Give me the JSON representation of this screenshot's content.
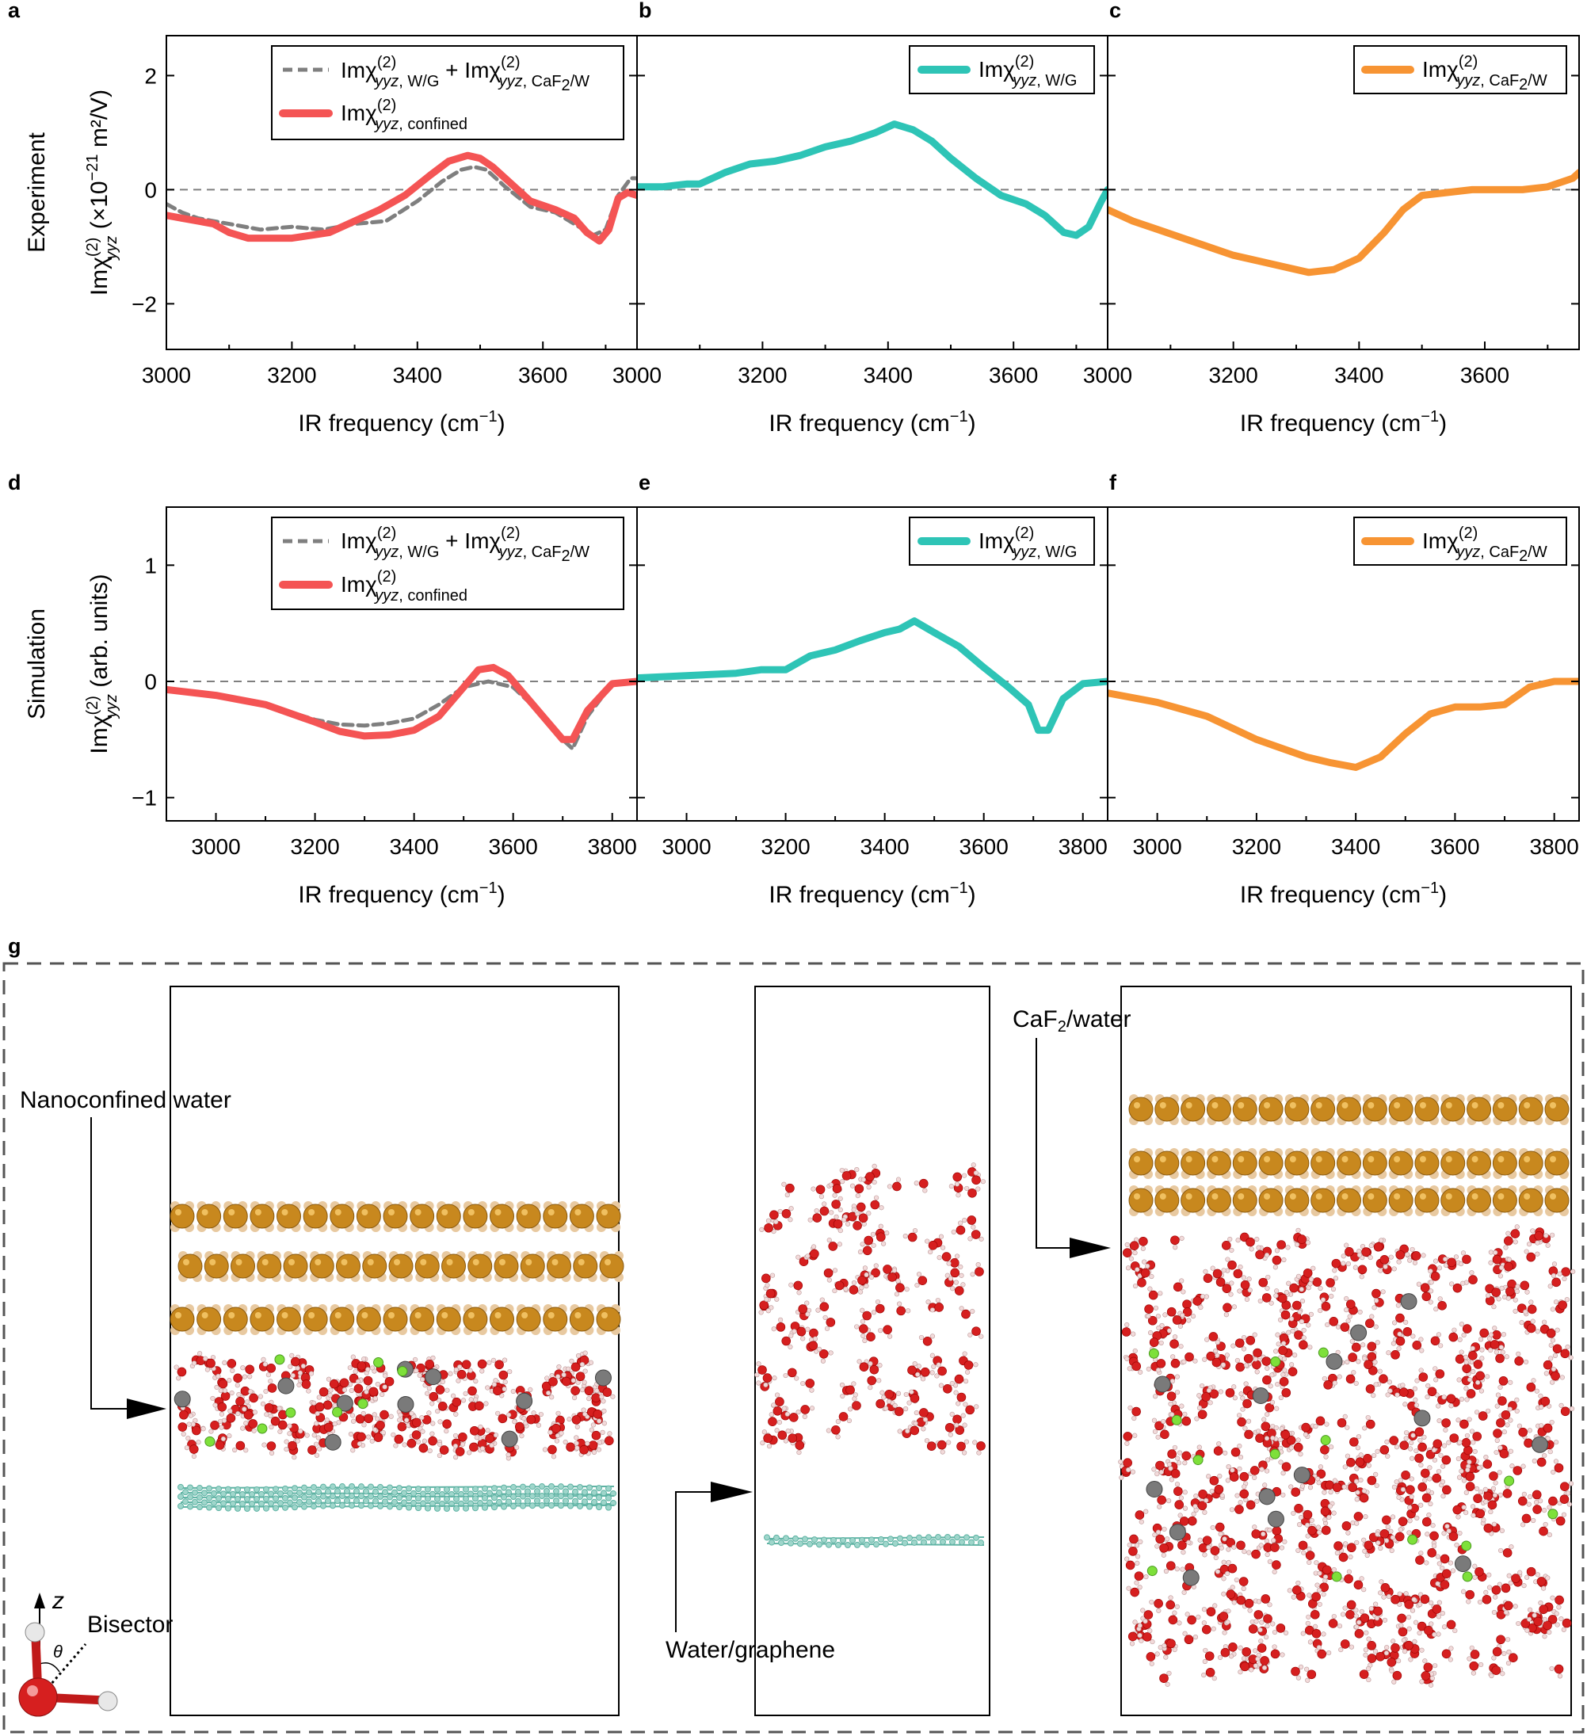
{
  "panel_letters": {
    "a": "a",
    "b": "b",
    "c": "c",
    "d": "d",
    "e": "e",
    "f": "f",
    "g": "g"
  },
  "row_labels": {
    "experiment": "Experiment",
    "simulation": "Simulation"
  },
  "ylabels": {
    "experiment_main": "Imχ",
    "experiment_sup": "(2)",
    "experiment_sub": "yyz",
    "experiment_units_pre": " (×10",
    "experiment_units_exp": "−21",
    "experiment_units_post": " m²/V)",
    "simulation_main": "Imχ",
    "simulation_sup": "(2)",
    "simulation_sub": "yyz",
    "simulation_units": " (arb. units)"
  },
  "xlabel": {
    "main": "IR frequency (cm",
    "exp": "−1",
    "close": ")"
  },
  "legends": {
    "im": "Imχ",
    "sup": "(2)",
    "yyz": "yyz",
    "sub_wg": ", W/G",
    "sub_caf2": ", CaF",
    "caf2_2": "2",
    "caf2_w": "/W",
    "sub_confined": ", confined",
    "plus": " + "
  },
  "scene_labels": {
    "nanoconfined": "Nanoconfined water",
    "water_graphene": "Water/graphene",
    "caf2_pre": "CaF",
    "caf2_2": "2",
    "caf2_post": "/water",
    "bisector": "Bisector",
    "z": "z",
    "theta": "θ"
  },
  "colors": {
    "confined": "#f45454",
    "sum": "#7f7f7f",
    "wg": "#2ec4b6",
    "caf2": "#f79433",
    "ca": "#c8881e",
    "f": "#e8c9a0",
    "oxygen": "#d61f1f",
    "hydrogen": "#f2dada",
    "graphene": "#5fb3a4",
    "ion_green": "#7ee03a",
    "ion_grey": "#7a7a7a"
  },
  "chart_data": [
    {
      "panel": "a",
      "type": "line",
      "row": "Experiment",
      "xlabel": "IR frequency (cm−1)",
      "ylabel": "Imχ(2)yyz (×10−21 m²/V)",
      "xlim": [
        3000,
        3750
      ],
      "ylim": [
        -2.8,
        2.7
      ],
      "xticks": [
        3000,
        3200,
        3400,
        3600
      ],
      "yticks": [
        -2,
        0,
        2
      ],
      "zero_line": true,
      "series": [
        {
          "name": "Imχ(2)yyz, W/G + Imχ(2)yyz, CaF2/W",
          "style": "dashed",
          "color": "#7f7f7f",
          "x": [
            3000,
            3025,
            3050,
            3100,
            3150,
            3200,
            3250,
            3300,
            3350,
            3400,
            3440,
            3470,
            3490,
            3510,
            3540,
            3580,
            3620,
            3650,
            3680,
            3700,
            3720,
            3740,
            3750
          ],
          "y": [
            -0.25,
            -0.4,
            -0.5,
            -0.6,
            -0.7,
            -0.65,
            -0.7,
            -0.6,
            -0.55,
            -0.2,
            0.15,
            0.35,
            0.4,
            0.35,
            0.05,
            -0.3,
            -0.4,
            -0.6,
            -0.8,
            -0.7,
            -0.1,
            0.2,
            0.2
          ]
        },
        {
          "name": "Imχ(2)yyz, confined",
          "style": "solid",
          "color": "#f45454",
          "x": [
            3000,
            3025,
            3050,
            3075,
            3100,
            3130,
            3160,
            3200,
            3230,
            3260,
            3300,
            3340,
            3380,
            3420,
            3450,
            3480,
            3500,
            3520,
            3550,
            3580,
            3620,
            3650,
            3670,
            3690,
            3705,
            3720,
            3735,
            3750
          ],
          "y": [
            -0.45,
            -0.5,
            -0.55,
            -0.6,
            -0.75,
            -0.85,
            -0.85,
            -0.85,
            -0.8,
            -0.75,
            -0.55,
            -0.35,
            -0.1,
            0.25,
            0.5,
            0.6,
            0.55,
            0.4,
            0.1,
            -0.2,
            -0.35,
            -0.5,
            -0.75,
            -0.9,
            -0.7,
            -0.15,
            -0.05,
            -0.1
          ]
        }
      ],
      "legend": "top-right"
    },
    {
      "panel": "b",
      "type": "line",
      "row": "Experiment",
      "xlabel": "IR frequency (cm−1)",
      "xlim": [
        3000,
        3750
      ],
      "ylim": [
        -2.8,
        2.7
      ],
      "xticks": [
        3000,
        3200,
        3400,
        3600
      ],
      "zero_line": true,
      "series": [
        {
          "name": "Imχ(2)yyz, W/G",
          "style": "solid",
          "color": "#2ec4b6",
          "x": [
            3000,
            3040,
            3080,
            3100,
            3140,
            3180,
            3220,
            3260,
            3300,
            3340,
            3380,
            3410,
            3440,
            3470,
            3500,
            3540,
            3580,
            3620,
            3650,
            3680,
            3700,
            3720,
            3740,
            3750
          ],
          "y": [
            0.05,
            0.05,
            0.1,
            0.1,
            0.3,
            0.45,
            0.5,
            0.6,
            0.75,
            0.85,
            1.0,
            1.15,
            1.05,
            0.85,
            0.55,
            0.2,
            -0.1,
            -0.25,
            -0.45,
            -0.75,
            -0.8,
            -0.65,
            -0.2,
            0.0
          ]
        }
      ],
      "legend": "top-right"
    },
    {
      "panel": "c",
      "type": "line",
      "row": "Experiment",
      "xlabel": "IR frequency (cm−1)",
      "xlim": [
        3000,
        3750
      ],
      "ylim": [
        -2.8,
        2.7
      ],
      "xticks": [
        3000,
        3200,
        3400,
        3600
      ],
      "zero_line": true,
      "series": [
        {
          "name": "Imχ(2)yyz, CaF2/W",
          "style": "solid",
          "color": "#f79433",
          "x": [
            3000,
            3040,
            3080,
            3120,
            3160,
            3200,
            3240,
            3280,
            3320,
            3360,
            3400,
            3440,
            3470,
            3500,
            3540,
            3580,
            3620,
            3660,
            3700,
            3740,
            3750
          ],
          "y": [
            -0.35,
            -0.55,
            -0.7,
            -0.85,
            -1.0,
            -1.15,
            -1.25,
            -1.35,
            -1.45,
            -1.4,
            -1.2,
            -0.75,
            -0.35,
            -0.1,
            -0.05,
            0.0,
            0.0,
            0.0,
            0.05,
            0.2,
            0.3
          ]
        }
      ],
      "legend": "top-right"
    },
    {
      "panel": "d",
      "type": "line",
      "row": "Simulation",
      "xlabel": "IR frequency (cm−1)",
      "ylabel": "Imχ(2)yyz (arb. units)",
      "xlim": [
        2900,
        3850
      ],
      "ylim": [
        -1.2,
        1.5
      ],
      "xticks": [
        3000,
        3200,
        3400,
        3600,
        3800
      ],
      "yticks": [
        -1,
        0,
        1
      ],
      "zero_line": true,
      "series": [
        {
          "name": "Imχ(2)yyz, W/G + Imχ(2)yyz, CaF2/W",
          "style": "dashed",
          "color": "#7f7f7f",
          "x": [
            2900,
            3000,
            3100,
            3200,
            3250,
            3300,
            3350,
            3400,
            3450,
            3500,
            3550,
            3600,
            3650,
            3700,
            3720,
            3750,
            3800,
            3850
          ],
          "y": [
            -0.07,
            -0.12,
            -0.2,
            -0.33,
            -0.37,
            -0.38,
            -0.36,
            -0.32,
            -0.2,
            -0.05,
            0.0,
            -0.05,
            -0.25,
            -0.5,
            -0.58,
            -0.3,
            -0.02,
            0.0
          ]
        },
        {
          "name": "Imχ(2)yyz, confined",
          "style": "solid",
          "color": "#f45454",
          "x": [
            2900,
            3000,
            3100,
            3200,
            3250,
            3300,
            3350,
            3400,
            3450,
            3500,
            3530,
            3560,
            3590,
            3620,
            3660,
            3700,
            3720,
            3750,
            3800,
            3850
          ],
          "y": [
            -0.07,
            -0.12,
            -0.2,
            -0.35,
            -0.43,
            -0.47,
            -0.46,
            -0.42,
            -0.3,
            -0.05,
            0.1,
            0.12,
            0.05,
            -0.1,
            -0.3,
            -0.5,
            -0.5,
            -0.25,
            -0.02,
            0.0
          ]
        }
      ],
      "legend": "top-right"
    },
    {
      "panel": "e",
      "type": "line",
      "row": "Simulation",
      "xlabel": "IR frequency (cm−1)",
      "xlim": [
        2900,
        3850
      ],
      "ylim": [
        -1.2,
        1.5
      ],
      "xticks": [
        3000,
        3200,
        3400,
        3600,
        3800
      ],
      "zero_line": true,
      "series": [
        {
          "name": "Imχ(2)yyz, W/G",
          "style": "solid",
          "color": "#2ec4b6",
          "x": [
            2900,
            3000,
            3100,
            3150,
            3200,
            3250,
            3300,
            3350,
            3400,
            3430,
            3460,
            3500,
            3550,
            3600,
            3650,
            3690,
            3710,
            3730,
            3760,
            3800,
            3850
          ],
          "y": [
            0.03,
            0.05,
            0.07,
            0.1,
            0.1,
            0.22,
            0.27,
            0.35,
            0.42,
            0.45,
            0.52,
            0.42,
            0.3,
            0.12,
            -0.05,
            -0.2,
            -0.42,
            -0.42,
            -0.15,
            -0.02,
            0.0
          ]
        }
      ],
      "legend": "top-right"
    },
    {
      "panel": "f",
      "type": "line",
      "row": "Simulation",
      "xlabel": "IR frequency (cm−1)",
      "xlim": [
        2900,
        3850
      ],
      "ylim": [
        -1.2,
        1.5
      ],
      "xticks": [
        3000,
        3200,
        3400,
        3600,
        3800
      ],
      "zero_line": true,
      "series": [
        {
          "name": "Imχ(2)yyz, CaF2/W",
          "style": "solid",
          "color": "#f79433",
          "x": [
            2900,
            3000,
            3100,
            3200,
            3300,
            3350,
            3400,
            3450,
            3500,
            3550,
            3600,
            3650,
            3700,
            3750,
            3780,
            3800,
            3850
          ],
          "y": [
            -0.1,
            -0.18,
            -0.3,
            -0.5,
            -0.65,
            -0.7,
            -0.74,
            -0.65,
            -0.45,
            -0.28,
            -0.22,
            -0.22,
            -0.2,
            -0.05,
            -0.02,
            0.0,
            0.0
          ]
        }
      ],
      "legend": "top-right"
    }
  ],
  "chart_ticks": {
    "exp_x": [
      "3000",
      "3200",
      "3400",
      "3600"
    ],
    "exp_y": [
      "−2",
      "0",
      "2"
    ],
    "sim_x": [
      "3000",
      "3200",
      "3400",
      "3600",
      "3800"
    ],
    "sim_y": [
      "−1",
      "0",
      "1"
    ]
  }
}
